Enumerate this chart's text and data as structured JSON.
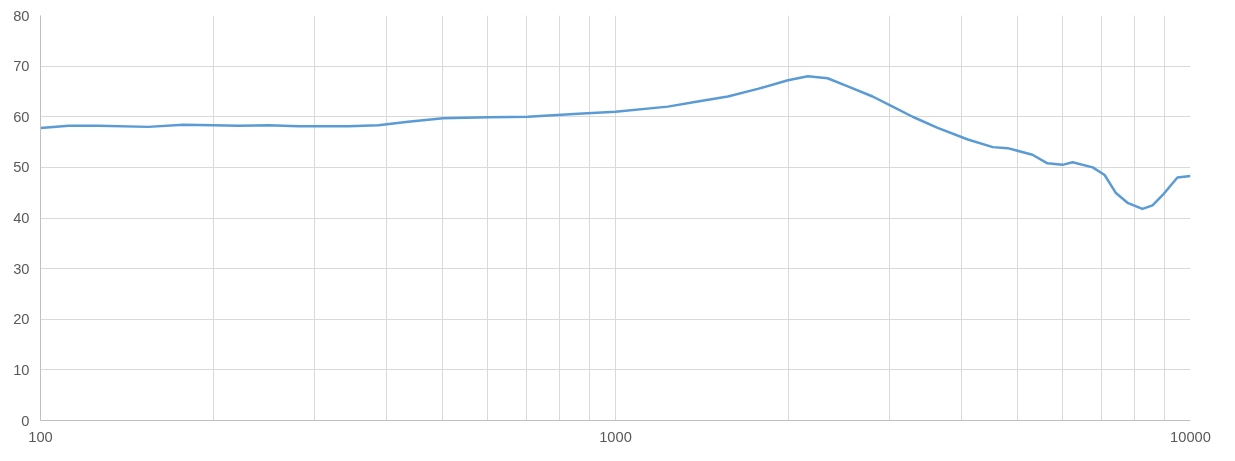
{
  "chart_data": {
    "type": "line",
    "log": "x",
    "grid": true,
    "marker": "none",
    "line_style": "solid",
    "xlim": [
      100,
      10000
    ],
    "ylim": [
      0,
      80
    ],
    "xticks": [
      100,
      {
        "value": 200,
        "label": null
      },
      {
        "value": 300,
        "label": null
      },
      {
        "value": 400,
        "label": null
      },
      {
        "value": 500,
        "label": null
      },
      {
        "value": 600,
        "label": null
      },
      {
        "value": 700,
        "label": null
      },
      {
        "value": 800,
        "label": null
      },
      {
        "value": 900,
        "label": null
      },
      1000,
      {
        "value": 2000,
        "label": null
      },
      {
        "value": 3000,
        "label": null
      },
      {
        "value": 4000,
        "label": null
      },
      {
        "value": 5000,
        "label": null
      },
      {
        "value": 6000,
        "label": null
      },
      {
        "value": 7000,
        "label": null
      },
      {
        "value": 8000,
        "label": null
      },
      {
        "value": 9000,
        "label": null
      },
      10000
    ],
    "yticks": [
      0,
      10,
      20,
      30,
      40,
      50,
      60,
      70,
      80
    ],
    "x": [
      100,
      112,
      126,
      154,
      177,
      200,
      221,
      249,
      281,
      343,
      387,
      436,
      501,
      600,
      704,
      861,
      1000,
      1233,
      1390,
      1568,
      1768,
      1995,
      2160,
      2338,
      2535,
      2800,
      3034,
      3286,
      3633,
      4100,
      4530,
      4808,
      5310,
      5640,
      5990,
      6235,
      6760,
      7090,
      7410,
      7770,
      8250,
      8590,
      8940,
      9490,
      10000
    ],
    "series": [
      {
        "color": "#5b9bd5",
        "values": [
          57.8,
          58.2,
          58.2,
          58.0,
          58.4,
          58.3,
          58.2,
          58.3,
          58.1,
          58.1,
          58.3,
          59.0,
          59.7,
          59.9,
          60.0,
          60.6,
          61.0,
          62.0,
          63.0,
          64.0,
          65.5,
          67.2,
          68.0,
          67.6,
          66.0,
          64.0,
          62.0,
          60.0,
          57.8,
          55.5,
          54.0,
          53.8,
          52.5,
          50.8,
          50.5,
          51.0,
          50.0,
          48.5,
          45.0,
          43.0,
          41.8,
          42.5,
          44.5,
          48.0,
          48.3
        ]
      }
    ]
  }
}
